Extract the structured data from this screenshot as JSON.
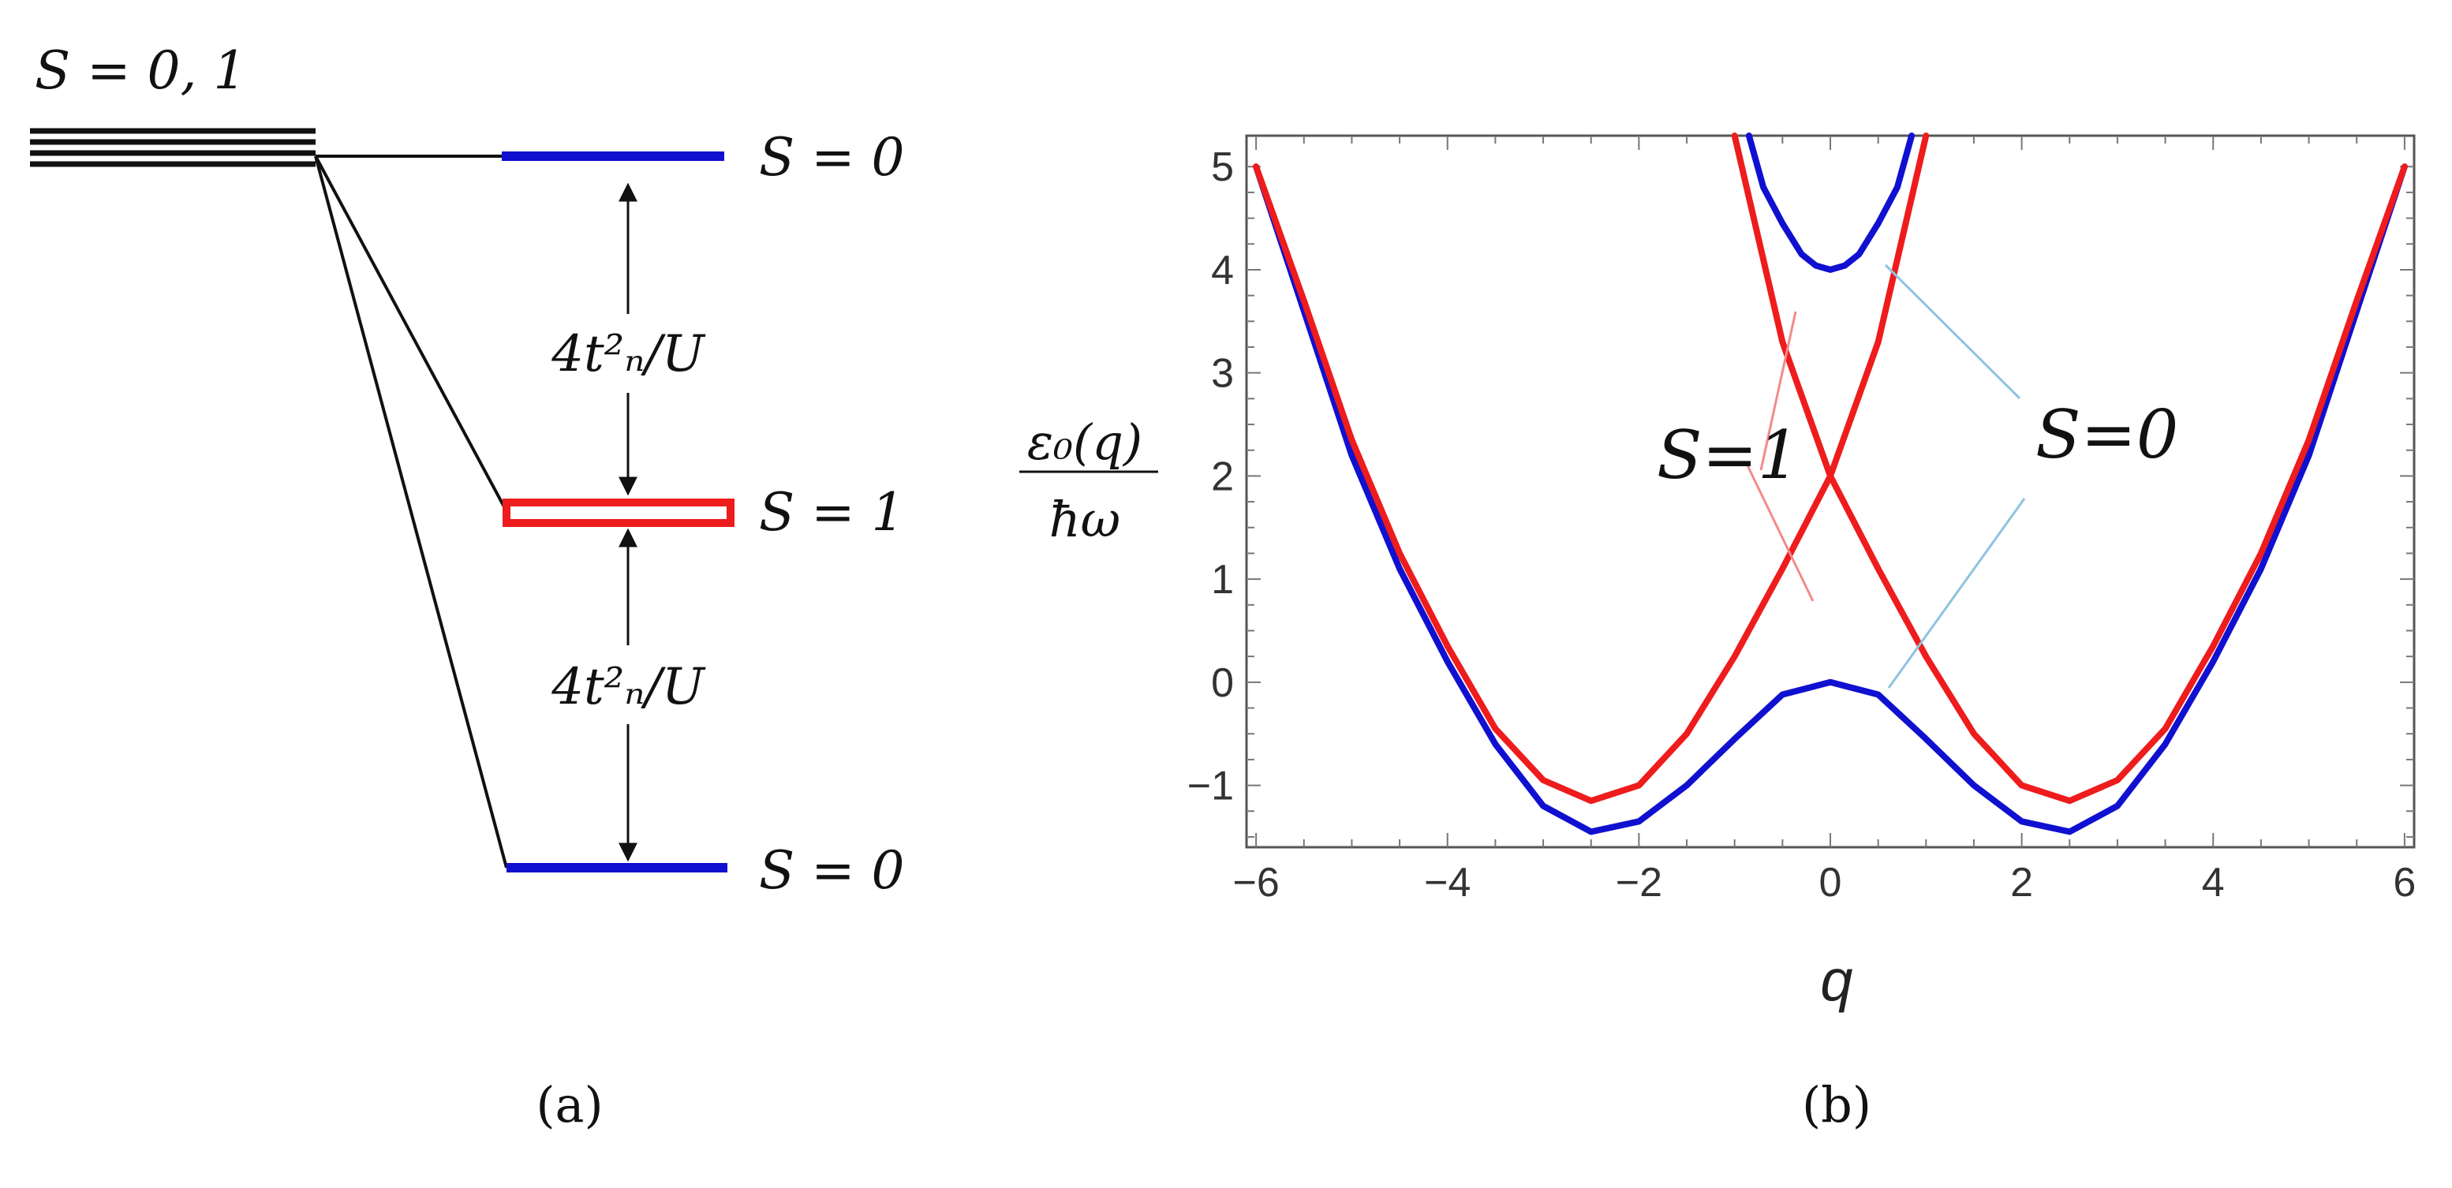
{
  "colors": {
    "singlet": "#1010d0",
    "triplet": "#ee1c1c",
    "leader_singlet": "#8fc3e0",
    "leader_triplet": "#f28a8a",
    "text": "#111111",
    "arrow": "#111111"
  },
  "panel_a": {
    "caption": "(a)",
    "degenerate_label": "S = 0, 1",
    "upper_singlet_label": "S = 0",
    "triplet_label": "S = 1",
    "lower_singlet_label": "S = 0",
    "gap_upper_label": "4t²ₙ/U",
    "gap_lower_label": "4t²ₙ/U"
  },
  "panel_b": {
    "caption": "(b)",
    "ylabel_top": "ε₀(q)",
    "ylabel_bottom": "ħω",
    "xlabel": "q",
    "label_s1": "S=1",
    "label_s0": "S=0"
  },
  "chart_data": {
    "type": "line",
    "xlabel": "q",
    "ylabel": "ε₀(q)/ħω",
    "xlim": [
      -6.1,
      6.1
    ],
    "ylim": [
      -1.6,
      5.3
    ],
    "xticks": [
      -6,
      -4,
      -2,
      0,
      2,
      4,
      6
    ],
    "yticks": [
      -1,
      0,
      1,
      2,
      3,
      4,
      5
    ],
    "xtick_labels": [
      "−6",
      "−4",
      "−2",
      "0",
      "2",
      "4",
      "6"
    ],
    "ytick_labels": [
      "−1",
      "0",
      "1",
      "2",
      "3",
      "4",
      "5"
    ],
    "series": [
      {
        "color": "#1010d0",
        "x": [
          -6.0,
          -5.5,
          -5.0,
          -4.5,
          -4.0,
          -3.5,
          -3.0,
          -2.5,
          -2.0,
          -1.5,
          -1.0,
          -0.5,
          0.0,
          0.5,
          1.0,
          1.5,
          2.0,
          2.5,
          3.0,
          3.5,
          4.0,
          4.5,
          5.0,
          5.5,
          6.0
        ],
        "y": [
          5.0,
          3.6,
          2.2,
          1.1,
          0.2,
          -0.6,
          -1.2,
          -1.45,
          -1.35,
          -1.0,
          -0.55,
          -0.12,
          0.0,
          -0.12,
          -0.55,
          -1.0,
          -1.35,
          -1.45,
          -1.2,
          -0.6,
          0.2,
          1.1,
          2.2,
          3.6,
          5.0
        ]
      },
      {
        "color": "#1010d0",
        "x": [
          -0.85,
          -0.7,
          -0.5,
          -0.3,
          -0.15,
          0.0,
          0.15,
          0.3,
          0.5,
          0.7,
          0.85
        ],
        "y": [
          5.3,
          4.8,
          4.45,
          4.15,
          4.04,
          4.0,
          4.04,
          4.15,
          4.45,
          4.8,
          5.3
        ]
      },
      {
        "color": "#ee1c1c",
        "x": [
          -6.0,
          -5.5,
          -5.0,
          -4.5,
          -4.0,
          -3.5,
          -3.0,
          -2.5,
          -2.0,
          -1.5,
          -1.0,
          -0.5,
          0.0,
          0.5,
          1.0
        ],
        "y": [
          5.0,
          3.7,
          2.35,
          1.25,
          0.35,
          -0.45,
          -0.95,
          -1.15,
          -1.0,
          -0.5,
          0.25,
          1.1,
          2.0,
          3.3,
          5.3
        ]
      },
      {
        "color": "#ee1c1c",
        "x": [
          -1.0,
          -0.5,
          0.0,
          0.5,
          1.0,
          1.5,
          2.0,
          2.5,
          3.0,
          3.5,
          4.0,
          4.5,
          5.0,
          5.5,
          6.0
        ],
        "y": [
          5.3,
          3.3,
          2.0,
          1.1,
          0.25,
          -0.5,
          -1.0,
          -1.15,
          -0.95,
          -0.45,
          0.35,
          1.25,
          2.35,
          3.7,
          5.0
        ]
      }
    ]
  }
}
